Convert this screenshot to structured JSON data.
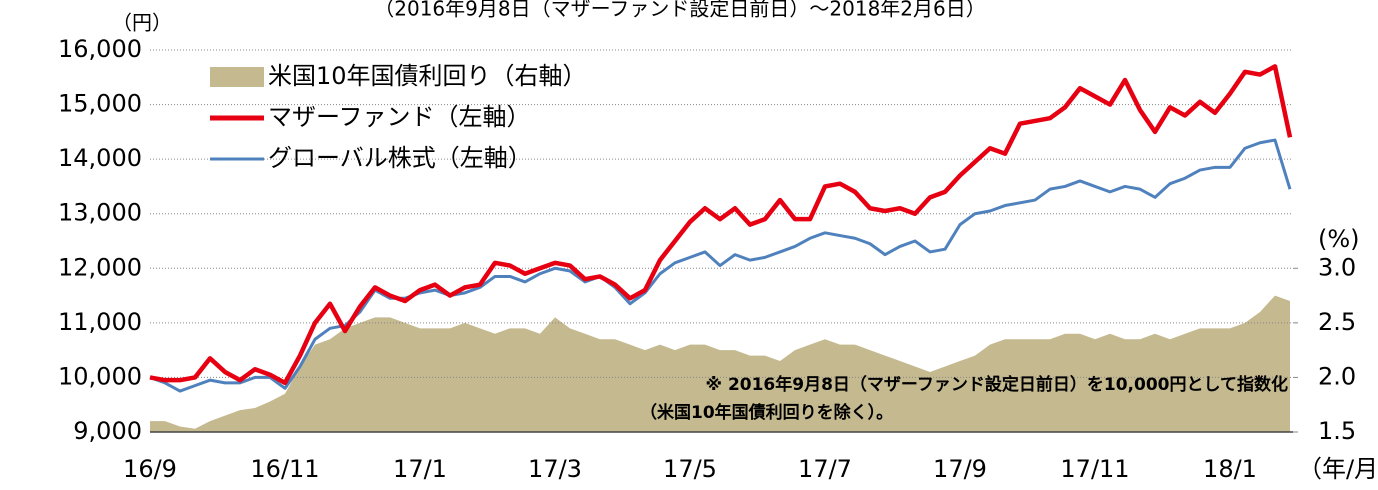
{
  "chart_data": {
    "type": "line",
    "title": "（2016年9月8日（マザーファンド設定日前日）～2018年2月6日）",
    "y_label": "（円）",
    "y2_label": "(%)",
    "x_label": "（年/月）",
    "note": [
      "※ 2016年9月8日（マザーファンド設定日前日）を10,000円として指数化",
      "（米国10年国債利回りを除く）。"
    ],
    "categories": [
      "16/9",
      null,
      null,
      null,
      null,
      null,
      null,
      null,
      null,
      "16/11",
      null,
      null,
      null,
      null,
      null,
      null,
      null,
      null,
      "17/1",
      null,
      null,
      null,
      null,
      null,
      null,
      null,
      null,
      "17/3",
      null,
      null,
      null,
      null,
      null,
      null,
      null,
      null,
      "17/5",
      null,
      null,
      null,
      null,
      null,
      null,
      null,
      null,
      "17/7",
      null,
      null,
      null,
      null,
      null,
      null,
      null,
      null,
      "17/9",
      null,
      null,
      null,
      null,
      null,
      null,
      null,
      null,
      "17/11",
      null,
      null,
      null,
      null,
      null,
      null,
      null,
      null,
      "18/1",
      null,
      null,
      null,
      null
    ],
    "series": [
      {
        "name": "米国10年国債利回り（右軸）",
        "color": "#c4b98f",
        "kind": "area",
        "axis": "y2",
        "values": [
          1.6,
          1.6,
          1.55,
          1.53,
          1.6,
          1.65,
          1.7,
          1.72,
          1.78,
          1.85,
          2.1,
          2.3,
          2.35,
          2.45,
          2.5,
          2.55,
          2.55,
          2.5,
          2.45,
          2.45,
          2.45,
          2.5,
          2.45,
          2.4,
          2.45,
          2.45,
          2.4,
          2.55,
          2.45,
          2.4,
          2.35,
          2.35,
          2.3,
          2.25,
          2.3,
          2.25,
          2.3,
          2.3,
          2.25,
          2.25,
          2.2,
          2.2,
          2.15,
          2.25,
          2.3,
          2.35,
          2.3,
          2.3,
          2.25,
          2.2,
          2.15,
          2.1,
          2.05,
          2.1,
          2.15,
          2.2,
          2.3,
          2.35,
          2.35,
          2.35,
          2.35,
          2.4,
          2.4,
          2.35,
          2.4,
          2.35,
          2.35,
          2.4,
          2.35,
          2.4,
          2.45,
          2.45,
          2.45,
          2.5,
          2.6,
          2.75,
          2.7
        ]
      },
      {
        "name": "マザーファンド（左軸）",
        "color": "#e60012",
        "kind": "line",
        "values": [
          10000,
          9950,
          9950,
          10000,
          10350,
          10100,
          9950,
          10150,
          10050,
          9900,
          10400,
          11000,
          11350,
          10850,
          11300,
          11650,
          11500,
          11400,
          11600,
          11700,
          11500,
          11650,
          11700,
          12100,
          12050,
          11900,
          12000,
          12100,
          12050,
          11800,
          11850,
          11700,
          11450,
          11600,
          12150,
          12500,
          12850,
          13100,
          12900,
          13100,
          12800,
          12900,
          13250,
          12900,
          12900,
          13500,
          13550,
          13400,
          13100,
          13050,
          13100,
          13000,
          13300,
          13400,
          13700,
          13950,
          14200,
          14100,
          14650,
          14700,
          14750,
          14950,
          15300,
          15150,
          15000,
          15450,
          14900,
          14500,
          14950,
          14800,
          15050,
          14850,
          15200,
          15600,
          15550,
          15700,
          14400
        ]
      },
      {
        "name": "グローバル株式（左軸）",
        "color": "#4f81bd",
        "kind": "line",
        "values": [
          10000,
          9900,
          9750,
          9850,
          9950,
          9900,
          9900,
          10000,
          10000,
          9800,
          10200,
          10700,
          10900,
          10950,
          11200,
          11600,
          11450,
          11450,
          11550,
          11600,
          11500,
          11550,
          11650,
          11850,
          11850,
          11750,
          11900,
          12000,
          11950,
          11750,
          11850,
          11650,
          11350,
          11550,
          11900,
          12100,
          12200,
          12300,
          12050,
          12250,
          12150,
          12200,
          12300,
          12400,
          12550,
          12650,
          12600,
          12550,
          12450,
          12250,
          12400,
          12500,
          12300,
          12350,
          12800,
          13000,
          13050,
          13150,
          13200,
          13250,
          13450,
          13500,
          13600,
          13500,
          13400,
          13500,
          13450,
          13300,
          13550,
          13650,
          13800,
          13850,
          13850,
          14200,
          14300,
          14350,
          13450
        ]
      }
    ],
    "ylim": [
      9000,
      16000
    ],
    "yticks": [
      {
        "value": 9000,
        "label": "9,000"
      },
      {
        "value": 10000,
        "label": "10,000"
      },
      {
        "value": 11000,
        "label": "11,000"
      },
      {
        "value": 12000,
        "label": "12,000"
      },
      {
        "value": 13000,
        "label": "13,000"
      },
      {
        "value": 14000,
        "label": "14,000"
      },
      {
        "value": 15000,
        "label": "15,000"
      },
      {
        "value": 16000,
        "label": "16,000"
      }
    ],
    "y2lim": [
      1.5,
      5.0
    ],
    "y2ticks": [
      {
        "value": 1.5,
        "label": "1.5"
      },
      {
        "value": 2,
        "label": "2.0"
      },
      {
        "value": 2.5,
        "label": "2.5"
      },
      {
        "value": 3,
        "label": "3.0"
      }
    ],
    "grid": true
  }
}
